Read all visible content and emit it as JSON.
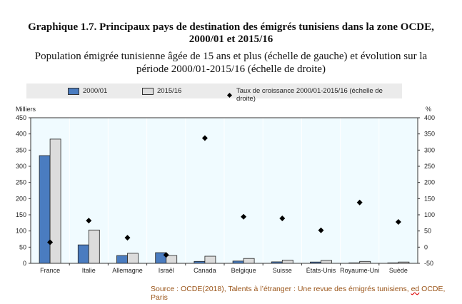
{
  "title": "Graphique 1.7. Principaux pays de destination des émigrés tunisiens dans la zone OCDE,",
  "title_line2": "2000/01 et 2015/16",
  "subtitle": "Population émigrée tunisienne âgée de 15 ans et plus (échelle de gauche) et évolution sur la",
  "subtitle_line2": "période 2000/01-2015/16 (échelle de droite)",
  "source_prefix": "Source : OCDE(2018), Talents à l’étranger : Une revue des émigrés tunisiens, ",
  "source_ed": "ed",
  "source_suffix": " OCDE, Paris",
  "chart_data": {
    "type": "bar",
    "categories": [
      "France",
      "Italie",
      "Allemagne",
      "Israël",
      "Canada",
      "Belgique",
      "Suisse",
      "États-Unis",
      "Royaume-Uni",
      "Suède"
    ],
    "series": [
      {
        "name": "2000/01",
        "type": "bar",
        "axis": "left",
        "color": "#4a7cc0",
        "values": [
          333,
          57,
          24,
          33,
          6,
          7,
          4.5,
          4,
          1.5,
          1.5
        ]
      },
      {
        "name": "2015/16",
        "type": "bar",
        "axis": "left",
        "color": "#dcdcdc",
        "values": [
          384,
          103,
          31,
          24,
          22,
          15,
          10,
          9,
          6,
          4
        ]
      },
      {
        "name": "Taux de croissance 2000/01-2015/16 (échelle de droite)",
        "type": "scatter",
        "axis": "right",
        "color": "#000000",
        "values": [
          15,
          82,
          29,
          -24,
          337,
          94,
          89,
          52,
          138,
          78
        ]
      }
    ],
    "ylabel_left": "Milliers",
    "ylabel_right": "%",
    "ylim_left": [
      0,
      450
    ],
    "ylim_right": [
      -50,
      400
    ],
    "yticks_left": [
      "0",
      "50",
      "100",
      "150",
      "200",
      "250",
      "300",
      "350",
      "400",
      "450"
    ],
    "yticks_right": [
      "-50",
      "0",
      "50",
      "100",
      "150",
      "200",
      "250",
      "300",
      "350",
      "400"
    ],
    "legend_position": "top",
    "plot_background": "#f0fbff"
  }
}
